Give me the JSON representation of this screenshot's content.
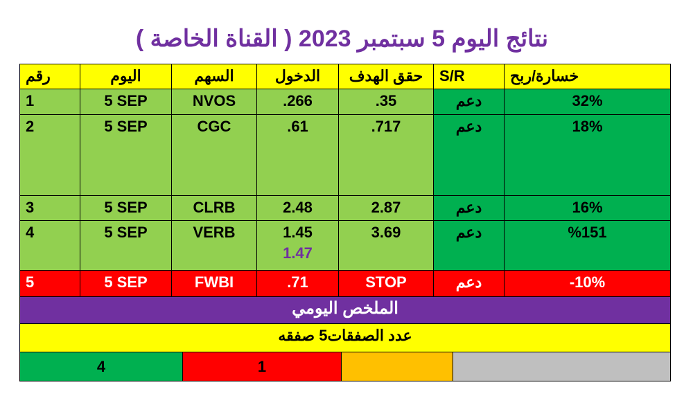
{
  "title": "نتائج اليوم 5 سبتمبر 2023 ( القناة الخاصة )",
  "table": {
    "header": [
      "رقم",
      "اليوم",
      "السهم",
      "الدخول",
      "حقق الهدف",
      "S/R",
      "خسارة/ربح"
    ],
    "rows": [
      [
        "1",
        "5 SEP",
        "NVOS",
        ".266",
        ".35",
        "دعم",
        "32%"
      ],
      [
        "2",
        "5 SEP",
        "CGC",
        ".61",
        ".717",
        "دعم",
        "18%"
      ],
      [
        "3",
        "5 SEP",
        "CLRB",
        "2.48",
        "2.87",
        "دعم",
        "16%"
      ],
      [
        "4",
        "5 SEP",
        "VERB",
        [
          "1.45",
          "1.47"
        ],
        "3.69",
        "دعم",
        "%151"
      ],
      [
        "5",
        "5 SEP",
        "FWBI",
        ".71",
        "STOP",
        "دعم",
        "-10%"
      ]
    ]
  },
  "summary": {
    "title": "الملخص اليومي",
    "count": "عدد الصفقات5 صفقه",
    "wins": "4",
    "losses": "1"
  }
}
